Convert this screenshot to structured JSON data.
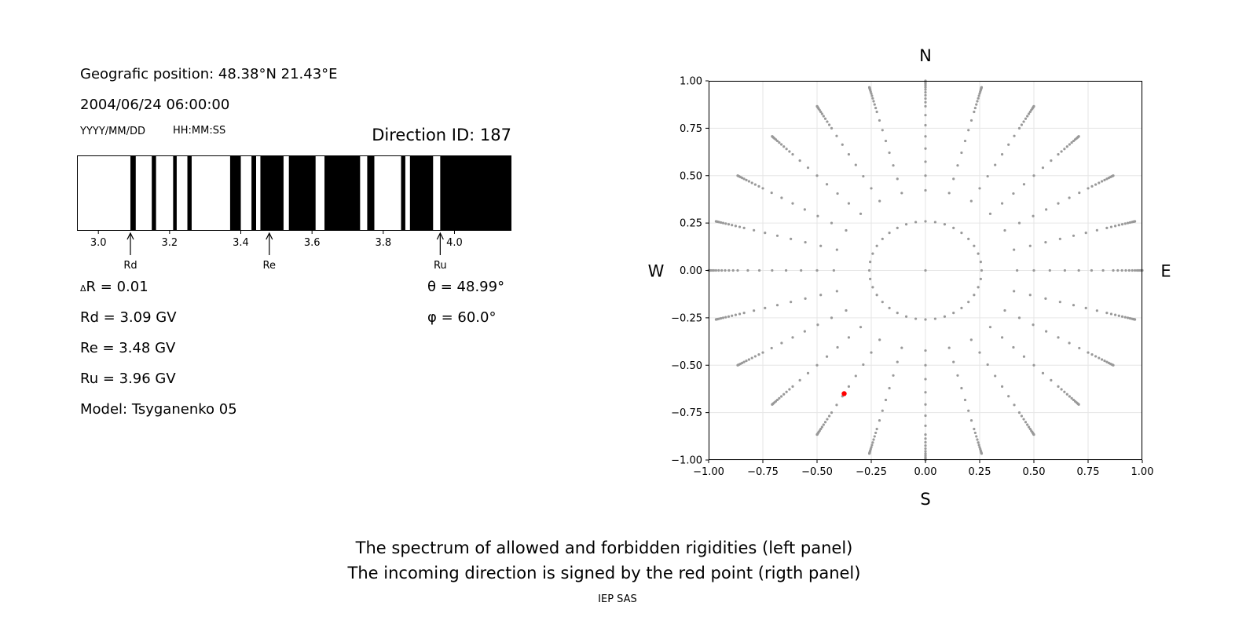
{
  "left_panel": {
    "geo_position": "Geografic position: 48.38°N 21.43°E",
    "datetime": "2004/06/24 06:00:00",
    "date_format": "YYYY/MM/DD",
    "time_format": "HH:MM:SS",
    "direction_id": "Direction ID: 187",
    "delta_r_symbol": "Δ",
    "delta_r": "R = 0.01",
    "rd": "Rd = 3.09 GV",
    "re": "Re = 3.48 GV",
    "ru": "Ru = 3.96 GV",
    "model": "Model: Tsyganenko 05",
    "theta": "θ = 48.99°",
    "phi": "φ = 60.0°"
  },
  "chart_data": [
    {
      "type": "heatmap",
      "name": "spectrum",
      "x_range": [
        2.94,
        4.16
      ],
      "x_ticks": [
        3.0,
        3.2,
        3.4,
        3.6,
        3.8,
        4.0
      ],
      "x_tick_labels": [
        "3.0",
        "3.2",
        "3.4",
        "3.6",
        "3.8",
        "4.0"
      ],
      "forbidden_intervals": [
        [
          3.09,
          3.105
        ],
        [
          3.15,
          3.162
        ],
        [
          3.21,
          3.22
        ],
        [
          3.25,
          3.262
        ],
        [
          3.37,
          3.4
        ],
        [
          3.43,
          3.443
        ],
        [
          3.455,
          3.52
        ],
        [
          3.535,
          3.61
        ],
        [
          3.635,
          3.735
        ],
        [
          3.755,
          3.775
        ],
        [
          3.85,
          3.862
        ],
        [
          3.875,
          3.94
        ],
        [
          3.96,
          4.16
        ]
      ],
      "markers": [
        {
          "label": "Rd",
          "value": 3.09
        },
        {
          "label": "Re",
          "value": 3.48
        },
        {
          "label": "Ru",
          "value": 3.96
        }
      ],
      "colors": {
        "allowed": "#ffffff",
        "forbidden": "#000000"
      }
    },
    {
      "type": "scatter",
      "name": "directions",
      "xlim": [
        -1.0,
        1.0
      ],
      "ylim": [
        -1.0,
        1.0
      ],
      "x_ticks": [
        -1.0,
        -0.75,
        -0.5,
        -0.25,
        0.0,
        0.25,
        0.5,
        0.75,
        1.0
      ],
      "y_ticks": [
        -1.0,
        -0.75,
        -0.5,
        -0.25,
        0.0,
        0.25,
        0.5,
        0.75,
        1.0
      ],
      "x_tick_labels": [
        "−1.00",
        "−0.75",
        "−0.50",
        "−0.25",
        "0.00",
        "0.25",
        "0.50",
        "0.75",
        "1.00"
      ],
      "y_tick_labels": [
        "−1.00",
        "−0.75",
        "−0.50",
        "−0.25",
        "0.00",
        "0.25",
        "0.50",
        "0.75",
        "1.00"
      ],
      "grid": true,
      "compass": {
        "north": "N",
        "south": "S",
        "west": "W",
        "east": "E"
      },
      "grid_points": {
        "center": [
          0.0,
          0.0
        ],
        "ring_zenith_angles_deg": [
          0,
          15,
          25,
          30,
          35,
          40,
          45,
          50,
          55,
          60,
          62.5,
          65,
          67.5,
          70,
          72.5,
          75,
          77.5,
          80,
          82.5,
          85,
          87.5,
          90
        ],
        "ring_points": [
          1,
          36,
          24,
          24,
          24,
          24,
          24,
          24,
          24,
          24,
          24,
          24,
          24,
          24,
          24,
          24,
          24,
          24,
          24,
          24,
          24,
          24
        ],
        "point_color": "#999999"
      },
      "selected_point": {
        "x": -0.375,
        "y": -0.65,
        "color": "#ff0000"
      }
    }
  ],
  "footer": {
    "line1": "The spectrum of allowed and forbidden rigidities (left panel)",
    "line2": "The incoming direction is signed by the red point (rigth panel)",
    "credit": "IEP SAS"
  }
}
